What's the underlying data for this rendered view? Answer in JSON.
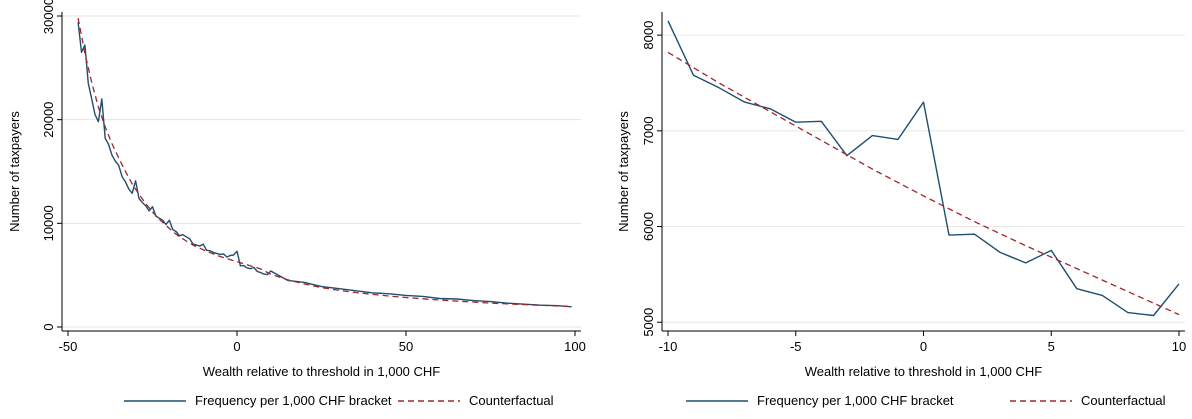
{
  "colors": {
    "series": "#1f4e6e",
    "counterfactual": "#a0262a",
    "grid": "#e6e6e6",
    "axis": "#000000"
  },
  "chart_data": [
    {
      "type": "line",
      "xlabel": "Wealth relative to threshold in 1,000 CHF",
      "ylabel": "Number of taxpayers",
      "xlim": [
        -50,
        100
      ],
      "ylim": [
        0,
        30000
      ],
      "xticks": [
        -50,
        0,
        50,
        100
      ],
      "yticks": [
        0,
        10000,
        20000,
        30000
      ],
      "grid": true,
      "legend_position": "bottom",
      "series": [
        {
          "name": "Frequency per 1,000 CHF bracket",
          "style": "solid",
          "x": [
            -47,
            -46,
            -45,
            -44,
            -43,
            -42,
            -41,
            -40,
            -39,
            -38,
            -37,
            -36,
            -35,
            -34,
            -33,
            -32,
            -31,
            -30,
            -29,
            -28,
            -27,
            -26,
            -25,
            -24,
            -23,
            -22,
            -21,
            -20,
            -19,
            -18,
            -17,
            -16,
            -15,
            -14,
            -13,
            -12,
            -11,
            -10,
            -9,
            -8,
            -7,
            -6,
            -5,
            -4,
            -3,
            -2,
            -1,
            0,
            1,
            2,
            3,
            4,
            5,
            6,
            7,
            8,
            9,
            10,
            15,
            20,
            25,
            30,
            35,
            40,
            45,
            50,
            55,
            60,
            65,
            70,
            75,
            80,
            85,
            90,
            95,
            99
          ],
          "y": [
            29400,
            26500,
            27200,
            23500,
            22000,
            20500,
            19800,
            22000,
            18200,
            17600,
            16600,
            16000,
            15600,
            14500,
            14000,
            13300,
            12900,
            14100,
            12400,
            12000,
            11700,
            11200,
            11600,
            10700,
            10500,
            10300,
            9900,
            10300,
            9400,
            9200,
            8800,
            8900,
            8700,
            8500,
            8000,
            7900,
            7800,
            8000,
            7400,
            7350,
            7200,
            7100,
            7000,
            7050,
            6750,
            6900,
            6950,
            7300,
            5900,
            5920,
            5700,
            5620,
            5750,
            5350,
            5250,
            5100,
            5050,
            5400,
            4500,
            4300,
            3900,
            3700,
            3500,
            3300,
            3200,
            3050,
            2950,
            2750,
            2700,
            2550,
            2450,
            2300,
            2200,
            2100,
            2050,
            1950
          ]
        },
        {
          "name": "Counterfactual",
          "style": "dashed",
          "x": [
            -47,
            -45,
            -43,
            -41,
            -39,
            -37,
            -35,
            -33,
            -31,
            -29,
            -27,
            -25,
            -23,
            -21,
            -19,
            -17,
            -15,
            -13,
            -11,
            -9,
            -7,
            -5,
            -3,
            -1,
            0,
            1,
            3,
            5,
            7,
            10,
            15,
            20,
            25,
            30,
            35,
            40,
            45,
            50,
            55,
            60,
            65,
            70,
            75,
            80,
            85,
            90,
            95,
            99
          ],
          "y": [
            29800,
            26400,
            23600,
            21200,
            19300,
            17700,
            16300,
            15000,
            13800,
            12800,
            11900,
            11100,
            10400,
            9800,
            9200,
            8700,
            8300,
            7900,
            7600,
            7300,
            7050,
            6800,
            6600,
            6400,
            6300,
            6200,
            6000,
            5800,
            5600,
            5080,
            4550,
            4150,
            3800,
            3550,
            3330,
            3150,
            2980,
            2850,
            2720,
            2600,
            2500,
            2400,
            2310,
            2230,
            2160,
            2090,
            2030,
            1980
          ]
        }
      ]
    },
    {
      "type": "line",
      "xlabel": "Wealth relative to threshold in 1,000 CHF",
      "ylabel": "Number of taxpayers",
      "xlim": [
        -10,
        10
      ],
      "ylim": [
        4950,
        8200
      ],
      "xticks": [
        -10,
        -5,
        0,
        5,
        10
      ],
      "yticks": [
        5000,
        6000,
        7000,
        8000
      ],
      "grid": true,
      "legend_position": "bottom",
      "series": [
        {
          "name": "Frequency per 1,000 CHF bracket",
          "style": "solid",
          "x": [
            -10,
            -9,
            -8,
            -7,
            -6,
            -5,
            -4,
            -3,
            -2,
            -1,
            0,
            1,
            2,
            3,
            4,
            5,
            6,
            7,
            8,
            9,
            10
          ],
          "y": [
            8150,
            7580,
            7450,
            7300,
            7230,
            7090,
            7100,
            6740,
            6950,
            6910,
            7300,
            5910,
            5920,
            5730,
            5620,
            5750,
            5350,
            5280,
            5100,
            5070,
            5400
          ]
        },
        {
          "name": "Counterfactual",
          "style": "dashed",
          "x": [
            -10,
            -8,
            -6,
            -4,
            -2,
            0,
            2,
            4,
            6,
            8,
            10
          ],
          "y": [
            7820,
            7500,
            7200,
            6900,
            6600,
            6320,
            6050,
            5800,
            5560,
            5320,
            5080
          ]
        }
      ]
    }
  ]
}
